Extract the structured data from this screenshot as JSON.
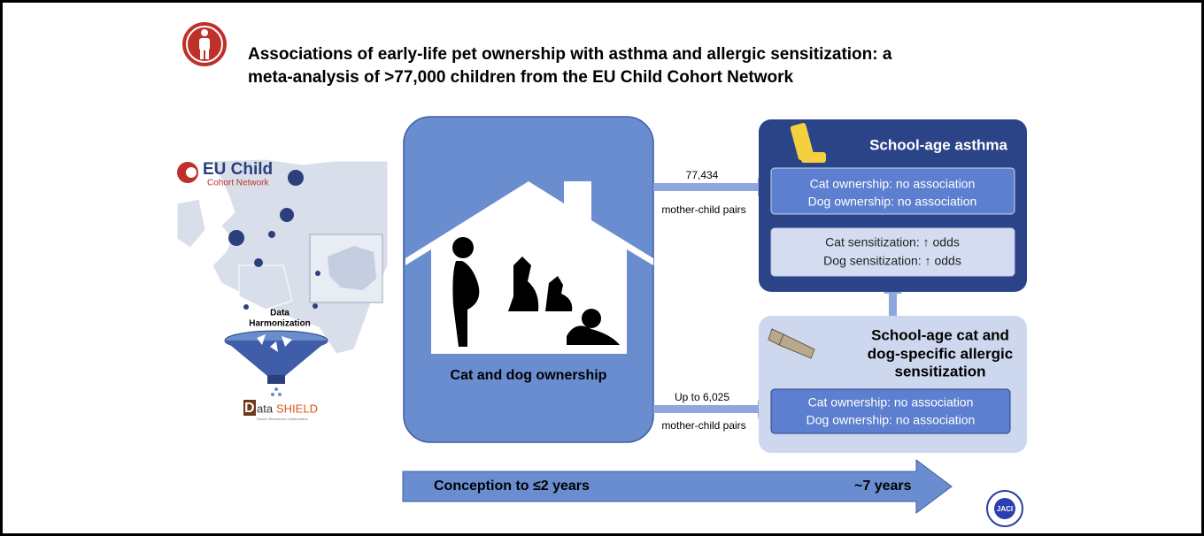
{
  "header": {
    "title_lines": [
      "Associations of early-life pet ownership with asthma and allergic sensitization: a",
      "meta-analysis of >77,000 children from the EU Child Cohort Network"
    ]
  },
  "logos": {
    "eu_child": "EU Child",
    "eu_child_sub": "Cohort Network",
    "datashield_parts": [
      "D",
      "ata",
      "SHIELD"
    ],
    "datashield_tagline": "Secure Bioscience Collaboration",
    "jaci": "JACI"
  },
  "harmonization": [
    "Data",
    "Harmonization"
  ],
  "exposure": "Cat and dog ownership",
  "arrows": [
    {
      "count": "77,434",
      "label": "mother-child pairs"
    },
    {
      "count": "Up to 6,025",
      "label": "mother-child pairs"
    }
  ],
  "asthma": {
    "title": "School-age asthma",
    "ownership": [
      "Cat ownership: no association",
      "Dog ownership: no association"
    ],
    "sensitization": [
      "Cat sensitization: ↑ odds",
      "Dog sensitization: ↑ odds"
    ]
  },
  "sensitization": {
    "title_lines": [
      "School-age cat and",
      "dog-specific allergic",
      "sensitization"
    ],
    "ownership": [
      "Cat ownership: no association",
      "Dog ownership: no association"
    ]
  },
  "timeline": {
    "start": "Conception to ≤2 years",
    "end": "~7 years"
  }
}
